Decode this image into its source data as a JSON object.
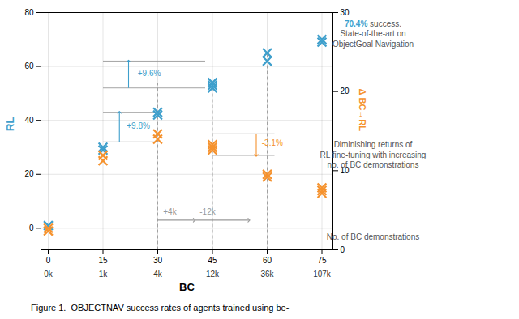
{
  "chart_data": {
    "type": "scatter",
    "xlabel": "BC",
    "ylabel": "RL",
    "y2label": "Δ BC→RL",
    "caption": "Figure 1.  OBJECTNAV success rates of agents trained using be-",
    "series": [
      {
        "color": "#3E9FCC",
        "marker": "x",
        "x": [
          0,
          15,
          15,
          30,
          30,
          45,
          45,
          45,
          60,
          60,
          75,
          75
        ],
        "values": [
          1,
          29,
          30,
          42,
          43,
          52,
          53,
          54,
          62,
          65,
          69,
          70
        ]
      },
      {
        "color": "#F5922E",
        "marker": "x",
        "x": [
          0,
          0,
          15,
          15,
          30,
          30,
          45,
          45,
          45,
          60,
          60,
          75,
          75,
          75
        ],
        "values": [
          -1,
          0,
          25,
          27,
          33,
          35,
          29,
          30,
          31,
          19,
          20,
          13,
          14,
          15
        ]
      }
    ],
    "xlim": [
      -2,
      78
    ],
    "xticks": [
      0,
      15,
      30,
      45,
      60,
      75
    ],
    "x_secondary_labels": [
      "0k",
      "1k",
      "4k",
      "12k",
      "36k",
      "107k"
    ],
    "ylim": [
      -8,
      80
    ],
    "yticks": [
      0,
      20,
      40,
      60,
      80
    ],
    "y2lim": [
      0,
      30
    ],
    "y2ticks": [
      0,
      10,
      20,
      30
    ],
    "grid": true,
    "lines": [
      {
        "x": [
          30,
          30
        ],
        "y": [
          -8,
          54
        ],
        "color": "#999999",
        "line_style": "dashed"
      },
      {
        "x": [
          45,
          45
        ],
        "y": [
          -8,
          54
        ],
        "color": "#999999",
        "line_style": "dashed"
      },
      {
        "x": [
          60,
          60
        ],
        "y": [
          -8,
          65
        ],
        "color": "#999999",
        "line_style": "dashed"
      },
      {
        "x": [
          15,
          43
        ],
        "y": [
          62,
          62
        ],
        "color": "#999999"
      },
      {
        "x": [
          15,
          43
        ],
        "y": [
          52,
          52
        ],
        "color": "#999999"
      },
      {
        "x": [
          22,
          22
        ],
        "y": [
          52,
          62
        ],
        "color": "#3E9FCC",
        "arrow": true
      },
      {
        "x": [
          15,
          31
        ],
        "y": [
          43,
          43
        ],
        "color": "#999999"
      },
      {
        "x": [
          15,
          31
        ],
        "y": [
          32,
          32
        ],
        "color": "#999999"
      },
      {
        "x": [
          19.5,
          19.5
        ],
        "y": [
          32,
          43
        ],
        "color": "#3E9FCC",
        "arrow": true
      },
      {
        "x": [
          45,
          62
        ],
        "y": [
          35,
          35
        ],
        "color": "#999999"
      },
      {
        "x": [
          45,
          62
        ],
        "y": [
          27,
          27
        ],
        "color": "#999999"
      },
      {
        "x": [
          57,
          57
        ],
        "y": [
          35,
          27
        ],
        "color": "#F5922E",
        "arrow": true
      },
      {
        "x": [
          30,
          40
        ],
        "y": [
          3,
          3
        ],
        "color": "#999999",
        "arrow": true
      },
      {
        "x": [
          40,
          55
        ],
        "y": [
          3,
          3
        ],
        "color": "#999999",
        "arrow": true
      }
    ],
    "annotations": [
      {
        "text": "+9.6%",
        "x": 24.5,
        "y": 57.5,
        "color": "#3E9FCC"
      },
      {
        "text": "+9.8%",
        "x": 21.5,
        "y": 38,
        "color": "#3E9FCC"
      },
      {
        "text": "-3.1%",
        "x": 58.5,
        "y": 31.5,
        "color": "#F5922E"
      },
      {
        "text": "+4k",
        "x": 31.5,
        "y": 6,
        "color": "#999999"
      },
      {
        "text": "-12k",
        "x": 41.5,
        "y": 6,
        "color": "#999999"
      }
    ],
    "side_notes": [
      {
        "lead": "70.4%",
        "lead_color": "#3E9FCC",
        "text": " success.\nState-of-the-art on\nObjectGoal Navigation",
        "color": "#555555"
      },
      {
        "text": "Diminishing returns of\nRL fine-tuning with increasing\nno. of BC demonstrations",
        "color": "#555555"
      },
      {
        "text": "No. of BC demonstrations",
        "color": "#555555"
      }
    ]
  }
}
